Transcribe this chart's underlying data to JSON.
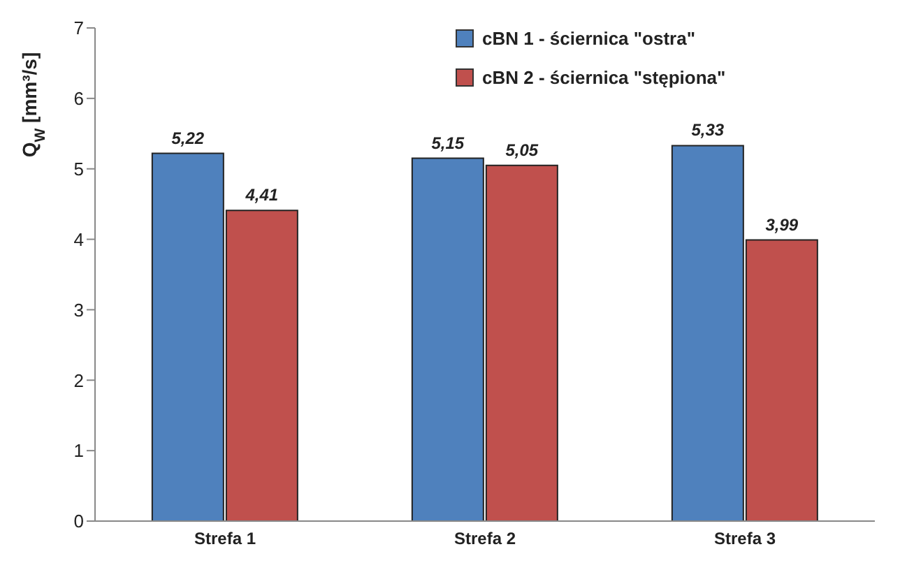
{
  "chart_data": {
    "type": "bar",
    "ylabel": "Q$_{W}$ [mm³/s]",
    "categories": [
      "Strefa 1",
      "Strefa 2",
      "Strefa 3"
    ],
    "series": [
      {
        "name": "cBN 1 - ściernica \"ostra\"",
        "color": "#4f81bd",
        "values": [
          5.22,
          5.15,
          5.33
        ],
        "value_labels": [
          "5,22",
          "5,15",
          "5,33"
        ]
      },
      {
        "name": "cBN 2 - ściernica \"stępiona\"",
        "color": "#c0504d",
        "values": [
          4.41,
          5.05,
          3.99
        ],
        "value_labels": [
          "4,41",
          "5,05",
          "3,99"
        ]
      }
    ],
    "ylim": [
      0,
      7
    ],
    "yticks": [
      0,
      1,
      2,
      3,
      4,
      5,
      6,
      7
    ],
    "legend": "top"
  }
}
